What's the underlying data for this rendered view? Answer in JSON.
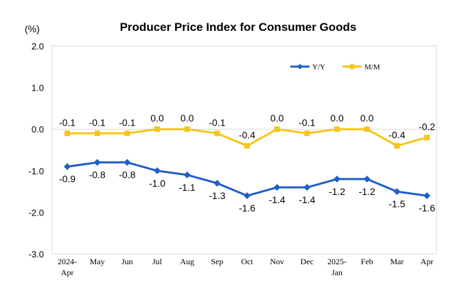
{
  "chart_data": {
    "type": "line",
    "title": "Producer Price Index for Consumer Goods",
    "unit_label": "(%)",
    "categories": [
      [
        "2024-",
        "Apr"
      ],
      [
        "May"
      ],
      [
        "Jun"
      ],
      [
        "Jul"
      ],
      [
        "Aug"
      ],
      [
        "Sep"
      ],
      [
        "Oct"
      ],
      [
        "Nov"
      ],
      [
        "Dec"
      ],
      [
        "2025-",
        "Jan"
      ],
      [
        "Feb"
      ],
      [
        "Mar"
      ],
      [
        "Apr"
      ]
    ],
    "series": [
      {
        "name": "Y/Y",
        "color": "#1f5fc6",
        "marker": "diamond",
        "values": [
          -0.9,
          -0.8,
          -0.8,
          -1.0,
          -1.1,
          -1.3,
          -1.6,
          -1.4,
          -1.4,
          -1.2,
          -1.2,
          -1.5,
          -1.6
        ],
        "label_position": "below"
      },
      {
        "name": "M/M",
        "color": "#f5c518",
        "marker": "square",
        "values": [
          -0.1,
          -0.1,
          -0.1,
          0.0,
          0.0,
          -0.1,
          -0.4,
          0.0,
          -0.1,
          0.0,
          0.0,
          -0.4,
          -0.2
        ],
        "label_position": "above"
      }
    ],
    "ylim": [
      -3.0,
      2.0
    ],
    "yticks": [
      "2.0",
      "1.0",
      "0.0",
      "-1.0",
      "-2.0",
      "-3.0"
    ],
    "ytick_values": [
      2.0,
      1.0,
      0.0,
      -1.0,
      -2.0,
      -3.0
    ],
    "grid": false,
    "legend_position": "top-right"
  }
}
